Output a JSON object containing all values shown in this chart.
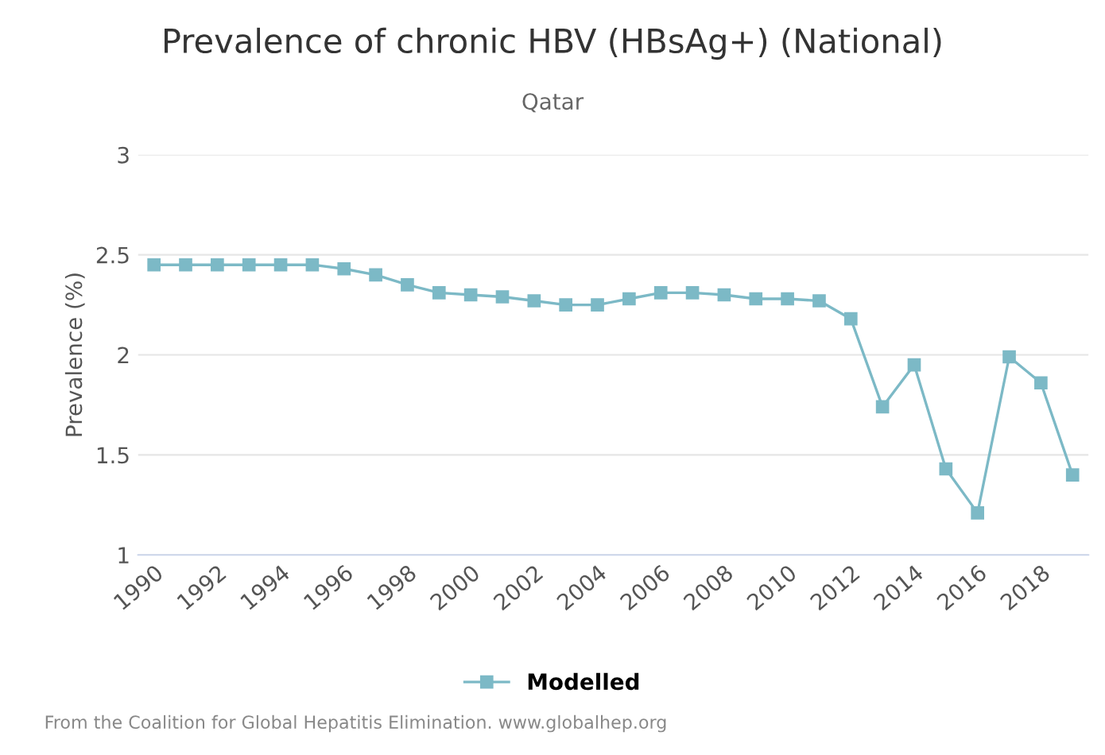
{
  "chart_data": {
    "type": "line",
    "title": "Prevalence of chronic HBV (HBsAg+) (National)",
    "subtitle": "Qatar",
    "ylabel": "Prevalence (%)",
    "x": [
      1990,
      1991,
      1992,
      1993,
      1994,
      1995,
      1996,
      1997,
      1998,
      1999,
      2000,
      2001,
      2002,
      2003,
      2004,
      2005,
      2006,
      2007,
      2008,
      2009,
      2010,
      2011,
      2012,
      2013,
      2014,
      2015,
      2016,
      2017,
      2018,
      2019
    ],
    "series": [
      {
        "name": "Modelled",
        "color": "#7cb9c6",
        "values": [
          2.45,
          2.45,
          2.45,
          2.45,
          2.45,
          2.45,
          2.43,
          2.4,
          2.35,
          2.31,
          2.3,
          2.29,
          2.27,
          2.25,
          2.25,
          2.28,
          2.31,
          2.31,
          2.3,
          2.28,
          2.28,
          2.27,
          2.18,
          1.74,
          1.95,
          1.43,
          1.21,
          1.99,
          1.86,
          1.4
        ]
      }
    ],
    "xlim": [
      1989.5,
      2019.5
    ],
    "xticks": [
      1990,
      1992,
      1994,
      1996,
      1998,
      2000,
      2002,
      2004,
      2006,
      2008,
      2010,
      2012,
      2014,
      2016,
      2018
    ],
    "ylim": [
      1,
      3
    ],
    "yticks": [
      1,
      1.5,
      2,
      2.5,
      3
    ],
    "grid": "y",
    "legend": "bottom",
    "marker": "square",
    "line_style": "solid",
    "annotations": [
      "From the Coalition for Global Hepatitis Elimination. www.globalhep.org"
    ]
  }
}
